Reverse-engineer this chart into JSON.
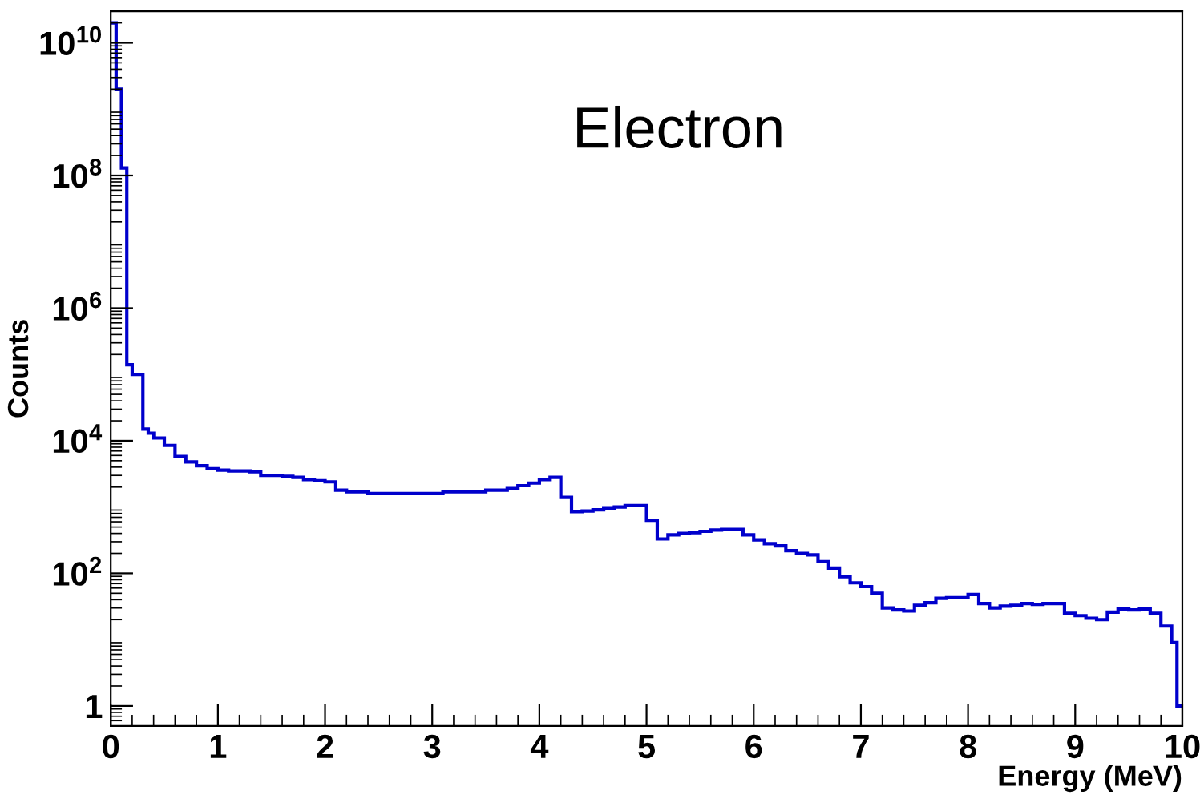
{
  "chart_data": {
    "type": "histogram",
    "xlabel": "Energy (MeV)",
    "ylabel": "Counts",
    "annotations": [
      "Electron"
    ],
    "color": "#0000cc",
    "log": "y",
    "xlim": [
      0,
      10
    ],
    "xticks": [
      0,
      1,
      2,
      3,
      4,
      5,
      6,
      7,
      8,
      9,
      10
    ],
    "ylim": [
      0.5,
      30000000000.0
    ],
    "yticks": [
      {
        "value": 1,
        "label": "1"
      },
      {
        "value": 100,
        "label": "10$^{2}$"
      },
      {
        "value": 10000,
        "label": "10$^{4}$"
      },
      {
        "value": 1000000,
        "label": "10$^{6}$"
      },
      {
        "value": 100000000,
        "label": "10$^{8}$"
      },
      {
        "value": 10000000000,
        "label": "10$^{10}$"
      }
    ],
    "bins": [
      0,
      0.05,
      0.1,
      0.15,
      0.2,
      0.25,
      0.3,
      0.35,
      0.4,
      0.5,
      0.6,
      0.7,
      0.8,
      0.9,
      1.0,
      1.1,
      1.2,
      1.3,
      1.4,
      1.5,
      1.6,
      1.7,
      1.8,
      1.9,
      2.0,
      2.1,
      2.2,
      2.3,
      2.4,
      2.5,
      2.6,
      2.7,
      2.8,
      2.9,
      3.0,
      3.1,
      3.2,
      3.3,
      3.4,
      3.5,
      3.6,
      3.7,
      3.8,
      3.9,
      4.0,
      4.1,
      4.2,
      4.3,
      4.4,
      4.5,
      4.6,
      4.7,
      4.8,
      4.9,
      5.0,
      5.1,
      5.2,
      5.3,
      5.4,
      5.5,
      5.6,
      5.7,
      5.8,
      5.9,
      6.0,
      6.1,
      6.2,
      6.3,
      6.4,
      6.5,
      6.6,
      6.7,
      6.8,
      6.9,
      7.0,
      7.1,
      7.2,
      7.3,
      7.4,
      7.5,
      7.6,
      7.7,
      7.8,
      7.9,
      8.0,
      8.1,
      8.2,
      8.3,
      8.4,
      8.5,
      8.6,
      8.7,
      8.8,
      8.9,
      9.0,
      9.1,
      9.2,
      9.3,
      9.4,
      9.5,
      9.6,
      9.7,
      9.8,
      9.9,
      9.95,
      10.0
    ],
    "values": [
      20000000000.0,
      2000000000.0,
      130000000.0,
      140000.0,
      100000.0,
      100000.0,
      15000,
      13000,
      11000,
      8500,
      5800,
      4800,
      4200,
      3800,
      3600,
      3500,
      3500,
      3400,
      3000,
      3000,
      2900,
      2800,
      2600,
      2500,
      2400,
      1800,
      1700,
      1700,
      1600,
      1600,
      1600,
      1600,
      1600,
      1600,
      1600,
      1700,
      1700,
      1700,
      1700,
      1800,
      1800,
      1900,
      2100,
      2300,
      2600,
      2800,
      1400,
      850,
      870,
      910,
      950,
      1000,
      1050,
      1050,
      630,
      330,
      380,
      400,
      410,
      430,
      450,
      460,
      460,
      380,
      320,
      280,
      260,
      220,
      200,
      190,
      150,
      120,
      89,
      72,
      63,
      50,
      30,
      28,
      27,
      33,
      36,
      42,
      43,
      43,
      48,
      35,
      30,
      32,
      33,
      35,
      34,
      35,
      35,
      25,
      23,
      21,
      20,
      26,
      29,
      28,
      29,
      25,
      16,
      9,
      1
    ]
  }
}
